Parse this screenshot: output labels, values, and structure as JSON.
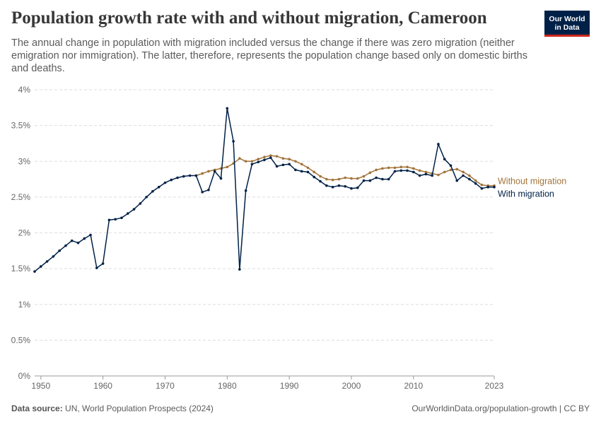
{
  "header": {
    "title": "Population growth rate with and without migration, Cameroon",
    "subtitle": "The annual change in population with migration included versus the change if there was zero migration (neither emigration nor immigration). The latter, therefore, represents the population change based only on domestic births and deaths."
  },
  "logo": {
    "line1": "Our World",
    "line2": "in Data",
    "bg_color": "#002147",
    "accent_color": "#ce261e"
  },
  "footer": {
    "source_label": "Data source:",
    "source_text": "UN, World Population Prospects (2024)",
    "url_text": "OurWorldinData.org/population-growth | CC BY"
  },
  "chart_data": {
    "type": "line",
    "title": "Population growth rate with and without migration, Cameroon",
    "xlabel": "",
    "ylabel": "",
    "xlim": [
      1949,
      2023
    ],
    "ylim": [
      0,
      4
    ],
    "x_ticks": [
      1950,
      1960,
      1970,
      1980,
      1990,
      2000,
      2010,
      2023
    ],
    "y_ticks": [
      0,
      0.5,
      1,
      1.5,
      2,
      2.5,
      3,
      3.5,
      4
    ],
    "y_tick_labels": [
      "0%",
      "0.5%",
      "1%",
      "1.5%",
      "2%",
      "2.5%",
      "3%",
      "3.5%",
      "4%"
    ],
    "grid": "horizontal dashed",
    "legend": "right, inline labels at line ends",
    "series": [
      {
        "name": "Without migration",
        "color": "#a2733a",
        "x": [
          1975,
          1976,
          1977,
          1978,
          1979,
          1980,
          1981,
          1982,
          1983,
          1984,
          1985,
          1986,
          1987,
          1988,
          1989,
          1990,
          1991,
          1992,
          1993,
          1994,
          1995,
          1996,
          1997,
          1998,
          1999,
          2000,
          2001,
          2002,
          2003,
          2004,
          2005,
          2006,
          2007,
          2008,
          2009,
          2010,
          2011,
          2012,
          2013,
          2014,
          2015,
          2016,
          2017,
          2018,
          2019,
          2020,
          2021,
          2022,
          2023
        ],
        "values": [
          2.8,
          2.83,
          2.86,
          2.88,
          2.9,
          2.92,
          2.97,
          3.04,
          3.0,
          3.0,
          3.03,
          3.06,
          3.08,
          3.07,
          3.04,
          3.03,
          3.0,
          2.96,
          2.91,
          2.85,
          2.79,
          2.75,
          2.74,
          2.75,
          2.77,
          2.76,
          2.76,
          2.79,
          2.84,
          2.88,
          2.9,
          2.91,
          2.91,
          2.92,
          2.92,
          2.9,
          2.87,
          2.85,
          2.83,
          2.81,
          2.85,
          2.88,
          2.89,
          2.85,
          2.8,
          2.73,
          2.67,
          2.66,
          2.66
        ]
      },
      {
        "name": "With migration",
        "color": "#002147",
        "x": [
          1949,
          1950,
          1951,
          1952,
          1953,
          1954,
          1955,
          1956,
          1957,
          1958,
          1959,
          1960,
          1961,
          1962,
          1963,
          1964,
          1965,
          1966,
          1967,
          1968,
          1969,
          1970,
          1971,
          1972,
          1973,
          1974,
          1975,
          1976,
          1977,
          1978,
          1979,
          1980,
          1981,
          1982,
          1983,
          1984,
          1985,
          1986,
          1987,
          1988,
          1989,
          1990,
          1991,
          1992,
          1993,
          1994,
          1995,
          1996,
          1997,
          1998,
          1999,
          2000,
          2001,
          2002,
          2003,
          2004,
          2005,
          2006,
          2007,
          2008,
          2009,
          2010,
          2011,
          2012,
          2013,
          2014,
          2015,
          2016,
          2017,
          2018,
          2019,
          2020,
          2021,
          2022,
          2023
        ],
        "values": [
          1.46,
          1.53,
          1.6,
          1.67,
          1.75,
          1.82,
          1.89,
          1.86,
          1.92,
          1.97,
          1.51,
          1.57,
          2.18,
          2.19,
          2.21,
          2.27,
          2.33,
          2.41,
          2.5,
          2.58,
          2.64,
          2.7,
          2.74,
          2.77,
          2.79,
          2.8,
          2.8,
          2.57,
          2.6,
          2.86,
          2.76,
          3.74,
          3.28,
          1.49,
          2.59,
          2.96,
          2.99,
          3.02,
          3.05,
          2.93,
          2.95,
          2.96,
          2.88,
          2.86,
          2.85,
          2.78,
          2.72,
          2.66,
          2.64,
          2.66,
          2.65,
          2.62,
          2.63,
          2.73,
          2.73,
          2.77,
          2.75,
          2.75,
          2.86,
          2.87,
          2.87,
          2.85,
          2.8,
          2.82,
          2.8,
          3.24,
          3.03,
          2.94,
          2.73,
          2.8,
          2.75,
          2.69,
          2.62,
          2.64,
          2.64
        ]
      }
    ]
  }
}
